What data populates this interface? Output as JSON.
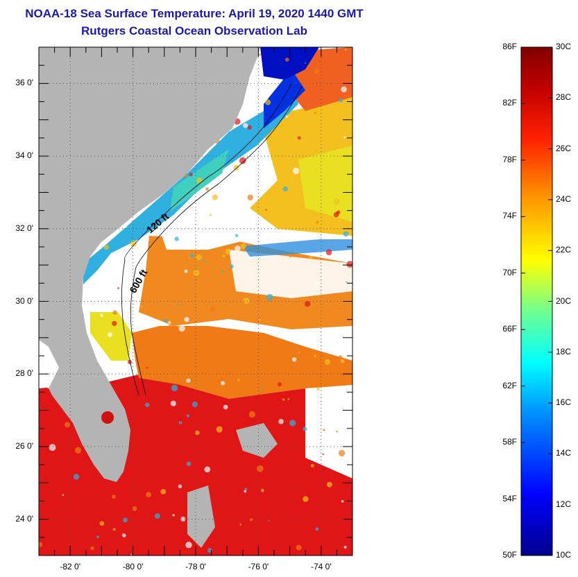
{
  "title": "NOAA-18 Sea Surface Temperature:  April 19, 2020 1440 GMT",
  "subtitle": "Rutgers Coastal Ocean Observation Lab",
  "map": {
    "lat_ticks": [
      "36 0'",
      "34 0'",
      "32 0'",
      "30 0'",
      "28 0'",
      "26 0'",
      "24 0'"
    ],
    "lon_ticks": [
      "-82 0'",
      "-80 0'",
      "-78 0'",
      "-76 0'",
      "-74 0'"
    ],
    "contours": [
      "120 ft",
      "600 ft"
    ],
    "extent": {
      "lon": [
        -83,
        -73
      ],
      "lat": [
        23,
        37
      ]
    }
  },
  "colorbar": {
    "fahrenheit": [
      "86F",
      "82F",
      "78F",
      "74F",
      "70F",
      "66F",
      "62F",
      "58F",
      "54F",
      "50F"
    ],
    "celsius": [
      "30C",
      "28C",
      "26C",
      "24C",
      "22C",
      "20C",
      "18C",
      "16C",
      "14C",
      "12C",
      "10C"
    ],
    "range_c": [
      10,
      30
    ],
    "colors": [
      "#00008c",
      "#0000ff",
      "#0090ff",
      "#00ffff",
      "#70ff90",
      "#ffff00",
      "#ff9900",
      "#ff2000",
      "#c00000",
      "#800000"
    ]
  },
  "colors": {
    "land": "#b4b4b4",
    "cloud": "#ffffff",
    "warm": "#e01010",
    "title": "#1a1aa8"
  }
}
